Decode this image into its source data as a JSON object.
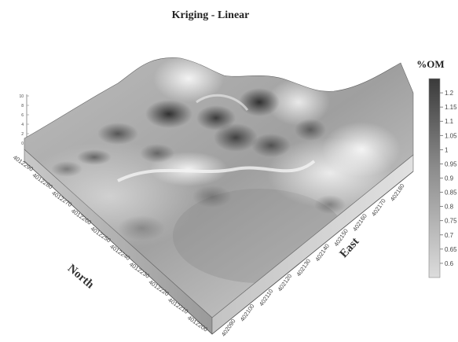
{
  "chart_data": {
    "type": "surface",
    "title": "Kriging - Linear",
    "xlabel": "East",
    "ylabel": "North",
    "zlabel": "",
    "east_ticks": [
      "402090",
      "402100",
      "402110",
      "402120",
      "402130",
      "402140",
      "402150",
      "402160",
      "402170",
      "402180"
    ],
    "north_ticks": [
      "4012200",
      "4012210",
      "4012220",
      "4012230",
      "4012240",
      "4012250",
      "4012260",
      "4012270",
      "4012280",
      "4012290"
    ],
    "z_ticks": [
      "0",
      "2",
      "4",
      "6",
      "8",
      "10"
    ],
    "colorbar": {
      "title": "%OM",
      "ticks": [
        "1.2",
        "1.15",
        "1.1",
        "1.05",
        "1",
        "0.95",
        "0.9",
        "0.85",
        "0.8",
        "0.75",
        "0.7",
        "0.65",
        "0.6"
      ],
      "range": [
        0.55,
        1.25
      ],
      "colormap": "grayscale (light = low, dark = high)"
    }
  }
}
